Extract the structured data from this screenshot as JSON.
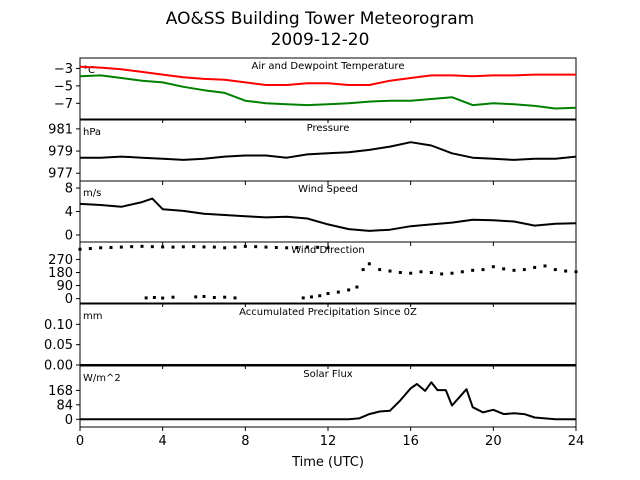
{
  "title": "AO&SS Building Tower Meteorogram",
  "subtitle": "2009-12-20",
  "xlabel": "Time (UTC)",
  "chart_data": {
    "type": "line",
    "x_range": [
      0,
      24
    ],
    "x_ticks": [
      "0",
      "4",
      "8",
      "12",
      "16",
      "20",
      "24"
    ],
    "panels": [
      {
        "id": "temperature",
        "title": "Air and Dewpoint Temperature",
        "unit": "°C",
        "ylim": [
          -8.8,
          -1.8
        ],
        "y_ticks": [
          -3,
          -5,
          -7
        ],
        "y_tick_labels": [
          "−3",
          "−5",
          "−7"
        ],
        "series": [
          {
            "color": "#ff0000",
            "x": [
              0,
              1,
              2,
              3,
              4,
              5,
              6,
              7,
              8,
              9,
              10,
              11,
              12,
              13,
              14,
              15,
              16,
              17,
              18,
              19,
              20,
              21,
              22,
              23,
              24
            ],
            "y": [
              -2.8,
              -2.9,
              -3.1,
              -3.4,
              -3.7,
              -4.0,
              -4.2,
              -4.3,
              -4.6,
              -4.9,
              -4.9,
              -4.7,
              -4.7,
              -4.9,
              -4.9,
              -4.4,
              -4.1,
              -3.8,
              -3.8,
              -3.9,
              -3.8,
              -3.8,
              -3.7,
              -3.7,
              -3.7
            ]
          },
          {
            "color": "#008000",
            "x": [
              0,
              1,
              2,
              3,
              4,
              5,
              6,
              7,
              8,
              9,
              10,
              11,
              12,
              13,
              14,
              15,
              16,
              17,
              18,
              19,
              20,
              21,
              22,
              23,
              24
            ],
            "y": [
              -3.9,
              -3.8,
              -4.1,
              -4.4,
              -4.6,
              -5.1,
              -5.5,
              -5.8,
              -6.7,
              -7.0,
              -7.1,
              -7.2,
              -7.1,
              -7.0,
              -6.8,
              -6.7,
              -6.7,
              -6.5,
              -6.3,
              -7.2,
              -7.0,
              -7.1,
              -7.3,
              -7.6,
              -7.5
            ]
          }
        ]
      },
      {
        "id": "pressure",
        "title": "Pressure",
        "unit": "hPa",
        "ylim": [
          976.3,
          981.8
        ],
        "y_ticks": [
          981,
          979,
          977
        ],
        "y_tick_labels": [
          "981",
          "979",
          "977"
        ],
        "series": [
          {
            "color": "#000000",
            "x": [
              0,
              1,
              2,
              3,
              4,
              5,
              6,
              7,
              8,
              9,
              10,
              11,
              12,
              13,
              14,
              15,
              16,
              17,
              18,
              19,
              20,
              21,
              22,
              23,
              24
            ],
            "y": [
              978.4,
              978.4,
              978.5,
              978.4,
              978.3,
              978.2,
              978.3,
              978.5,
              978.6,
              978.6,
              978.4,
              978.7,
              978.8,
              978.9,
              979.1,
              979.4,
              979.8,
              979.5,
              978.8,
              978.4,
              978.3,
              978.2,
              978.3,
              978.3,
              978.5
            ]
          }
        ]
      },
      {
        "id": "wind_speed",
        "title": "Wind Speed",
        "unit": "m/s",
        "ylim": [
          -1.2,
          9.2
        ],
        "y_ticks": [
          8,
          4,
          0
        ],
        "y_tick_labels": [
          "8",
          "4",
          "0"
        ],
        "series": [
          {
            "color": "#000000",
            "x": [
              0,
              1,
              2,
              3,
              3.5,
              4,
              5,
              6,
              7,
              8,
              9,
              10,
              11,
              12,
              13,
              14,
              15,
              16,
              17,
              18,
              19,
              20,
              21,
              22,
              23,
              24
            ],
            "y": [
              5.3,
              5.1,
              4.8,
              5.6,
              6.2,
              4.4,
              4.1,
              3.6,
              3.4,
              3.2,
              3.0,
              3.1,
              2.8,
              1.8,
              1.0,
              0.7,
              0.9,
              1.5,
              1.8,
              2.1,
              2.6,
              2.5,
              2.3,
              1.6,
              1.9,
              2.0
            ]
          }
        ]
      },
      {
        "id": "wind_direction",
        "title": "Wind Direction",
        "unit": "",
        "ylim": [
          -30,
          390
        ],
        "y_ticks": [
          270,
          180,
          90,
          0
        ],
        "y_tick_labels": [
          "270",
          "180",
          "90",
          "0"
        ],
        "series": [
          {
            "color": "#000000",
            "style": "points",
            "x": [
              0,
              0.5,
              1,
              1.5,
              2,
              2.5,
              3,
              3.5,
              4,
              4.5,
              5,
              5.5,
              6,
              6.5,
              7,
              7.5,
              8,
              8.5,
              9,
              9.5,
              10,
              10.5,
              11,
              11.5,
              12,
              3.2,
              3.6,
              4.0,
              4.5,
              5.6,
              6.0,
              6.5,
              7.0,
              7.5,
              10.8,
              11.2,
              11.6,
              12.0,
              12.5,
              13.0,
              13.4,
              13.7,
              14.0,
              14.5,
              15.0,
              15.5,
              16.0,
              16.5,
              17.0,
              17.5,
              18.0,
              18.5,
              19.0,
              19.5,
              20.0,
              20.5,
              21.0,
              21.5,
              22.0,
              22.5,
              23.0,
              23.5,
              24.0
            ],
            "y": [
              340,
              345,
              350,
              352,
              355,
              358,
              360,
              358,
              356,
              355,
              357,
              358,
              356,
              355,
              350,
              355,
              360,
              358,
              355,
              352,
              350,
              352,
              355,
              353,
              350,
              5,
              8,
              4,
              10,
              12,
              15,
              8,
              10,
              5,
              5,
              12,
              20,
              35,
              45,
              60,
              80,
              200,
              240,
              200,
              190,
              180,
              175,
              185,
              180,
              170,
              175,
              185,
              195,
              200,
              220,
              205,
              195,
              200,
              215,
              225,
              200,
              190,
              185
            ]
          }
        ]
      },
      {
        "id": "precipitation",
        "title": "Accumulated Precipitation Since 0Z",
        "unit": "mm",
        "ylim": [
          0,
          0.15
        ],
        "y_ticks": [
          0.1,
          0.05,
          0.0
        ],
        "y_tick_labels": [
          "0.10",
          "0.05",
          "0.00"
        ],
        "series": [
          {
            "color": "#000000",
            "x": [
              0,
              24
            ],
            "y": [
              0,
              0
            ]
          }
        ]
      },
      {
        "id": "solar_flux",
        "title": "Solar Flux",
        "unit": "W/m^2",
        "ylim": [
          -45,
          310
        ],
        "y_ticks": [
          168,
          84,
          0
        ],
        "y_tick_labels": [
          "168",
          "84",
          "0"
        ],
        "series": [
          {
            "color": "#000000",
            "x": [
              0,
              13,
              13.5,
              14,
              14.5,
              15,
              15.5,
              16,
              16.3,
              16.7,
              17,
              17.3,
              17.7,
              18,
              18.3,
              18.7,
              19,
              19.5,
              20,
              20.5,
              21,
              21.5,
              22,
              22.5,
              23,
              24
            ],
            "y": [
              0,
              0,
              5,
              30,
              45,
              50,
              110,
              180,
              205,
              165,
              215,
              170,
              170,
              80,
              120,
              175,
              70,
              40,
              55,
              30,
              35,
              30,
              10,
              5,
              0,
              0
            ]
          }
        ]
      }
    ]
  }
}
